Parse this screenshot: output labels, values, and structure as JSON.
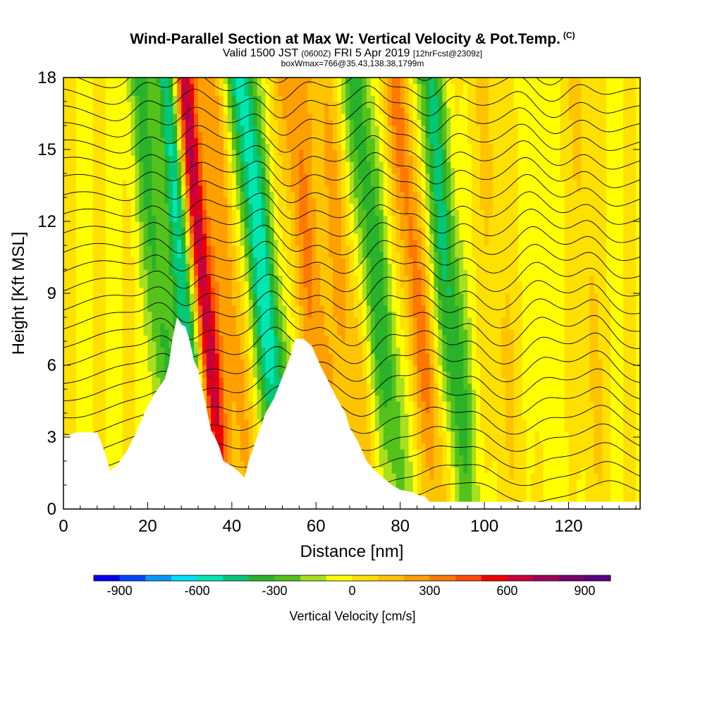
{
  "header": {
    "title": "Wind-Parallel Section at Max W: Vertical Velocity & Pot.Temp.",
    "copyright": "(C)",
    "valid_prefix": "Valid 1500 JST",
    "valid_utc": "(0600Z)",
    "valid_date": "FRI 5 Apr 2019",
    "forecast": "[12hrFcst@2309z]",
    "box_info": "boxWmax=766@35.43,138.38,1799m"
  },
  "chart_data": {
    "type": "heatmap",
    "title": "Wind-Parallel Section at Max W: Vertical Velocity & Pot.Temp.",
    "xlabel": "Distance [nm]",
    "ylabel": "Height [Kft MSL]",
    "xlim": [
      0,
      137
    ],
    "ylim": [
      0,
      18
    ],
    "x_ticks": [
      0,
      20,
      40,
      60,
      80,
      100,
      120
    ],
    "y_ticks": [
      0,
      3,
      6,
      9,
      12,
      15,
      18
    ],
    "colorbar": {
      "label": "Vertical Velocity [cm/s]",
      "tick_labels": [
        "-900",
        "-600",
        "-300",
        "0",
        "300",
        "600",
        "900"
      ],
      "tick_values": [
        -900,
        -600,
        -300,
        0,
        300,
        600,
        900
      ],
      "min": -1000,
      "max": 1000,
      "colors": [
        "#0000ee",
        "#0044ff",
        "#0099ff",
        "#00ddff",
        "#00e6b0",
        "#00c878",
        "#2ab22a",
        "#55c21c",
        "#a8df1e",
        "#ffff00",
        "#ffe000",
        "#ffc400",
        "#ffa000",
        "#ff7800",
        "#ff4a00",
        "#ee0000",
        "#c8003c",
        "#a0005a",
        "#780070",
        "#5a0082"
      ]
    },
    "terrain": [
      [
        0,
        3.0
      ],
      [
        3,
        3.2
      ],
      [
        8,
        3.2
      ],
      [
        10,
        2.3
      ],
      [
        11,
        1.6
      ],
      [
        13,
        1.9
      ],
      [
        15,
        2.4
      ],
      [
        17,
        3.1
      ],
      [
        19,
        3.9
      ],
      [
        20,
        4.3
      ],
      [
        22,
        4.9
      ],
      [
        24,
        5.4
      ],
      [
        25,
        6.0
      ],
      [
        26,
        7.2
      ],
      [
        27,
        8.0
      ],
      [
        28,
        7.7
      ],
      [
        29,
        7.6
      ],
      [
        30,
        7.0
      ],
      [
        31,
        6.2
      ],
      [
        32,
        5.8
      ],
      [
        33,
        5.0
      ],
      [
        34,
        4.2
      ],
      [
        35,
        3.3
      ],
      [
        36,
        3.0
      ],
      [
        37,
        2.6
      ],
      [
        38,
        2.0
      ],
      [
        40,
        1.8
      ],
      [
        42,
        1.5
      ],
      [
        43,
        1.3
      ],
      [
        44,
        2.0
      ],
      [
        46,
        3.0
      ],
      [
        48,
        4.0
      ],
      [
        50,
        4.6
      ],
      [
        52,
        5.5
      ],
      [
        54,
        6.4
      ],
      [
        55,
        7.1
      ],
      [
        57,
        7.1
      ],
      [
        59,
        6.8
      ],
      [
        61,
        6.0
      ],
      [
        63,
        5.3
      ],
      [
        65,
        4.6
      ],
      [
        67,
        4.0
      ],
      [
        68,
        3.4
      ],
      [
        70,
        2.8
      ],
      [
        72,
        2.0
      ],
      [
        74,
        1.6
      ],
      [
        76,
        1.3
      ],
      [
        78,
        1.0
      ],
      [
        80,
        0.8
      ],
      [
        83,
        0.7
      ],
      [
        84,
        0.6
      ],
      [
        86,
        0.5
      ],
      [
        87,
        0.3
      ],
      [
        137,
        0.3
      ]
    ]
  }
}
